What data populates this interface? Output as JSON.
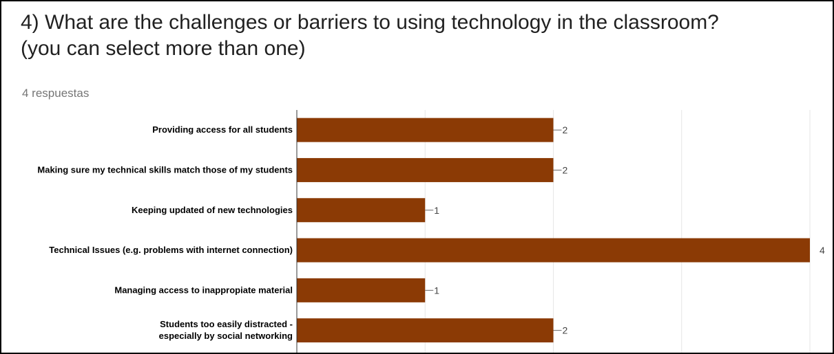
{
  "question": {
    "line1": "4) What are the challenges or barriers to using technology in the classroom?",
    "line2": "(you can select more than one)",
    "responses": "4 respuestas"
  },
  "colors": {
    "bar": "#8b3a05",
    "grid": "#e6e6e6",
    "axis": "#333333"
  },
  "chart_data": {
    "type": "bar",
    "orientation": "horizontal",
    "categories": [
      [
        "Providing access for all students"
      ],
      [
        "Making sure my technical skills match those of my students"
      ],
      [
        "Keeping updated of new technologies"
      ],
      [
        "Technical Issues (e.g. problems with internet connection)"
      ],
      [
        "Managing access to inappropiate material"
      ],
      [
        "Students too easily distracted -",
        "especially by social networking"
      ]
    ],
    "values": [
      2,
      2,
      1,
      4,
      1,
      2
    ],
    "value_labels": [
      "2",
      "2",
      "1",
      "4",
      "1",
      "2"
    ],
    "xlim": [
      0,
      4
    ],
    "grid": true
  }
}
